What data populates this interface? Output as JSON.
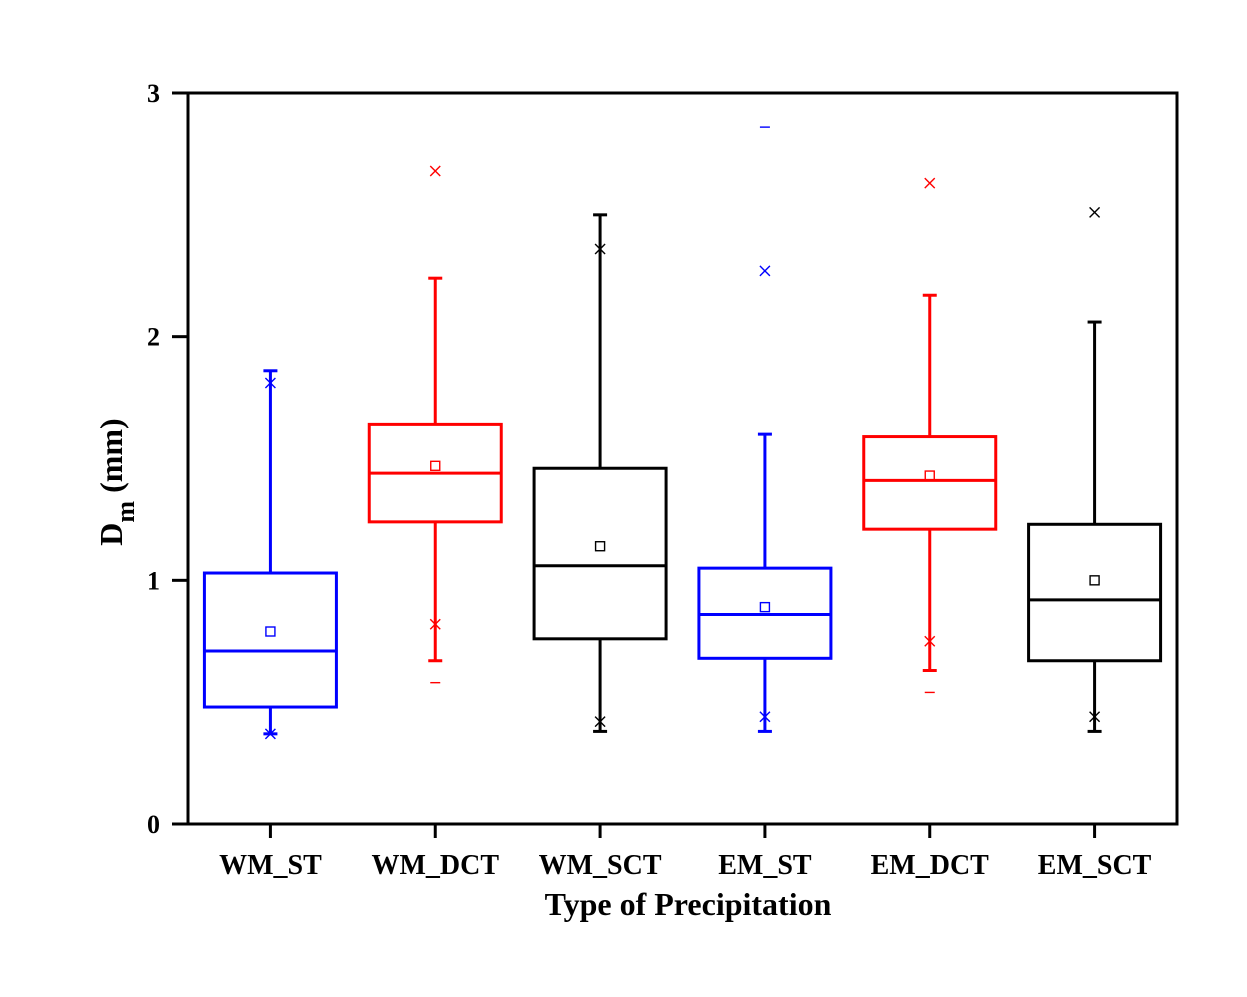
{
  "chart_data": {
    "type": "box",
    "xlabel": "Type of Precipitation",
    "ylabel": {
      "main": "D",
      "sub": "m",
      "unit": " (mm)"
    },
    "ylim": [
      0,
      3
    ],
    "yticks": [
      0,
      1,
      2,
      3
    ],
    "grid": false,
    "categories": [
      "WM_ST",
      "WM_DCT",
      "WM_SCT",
      "EM_ST",
      "EM_DCT",
      "EM_SCT"
    ],
    "series": [
      {
        "category": "WM_ST",
        "color": "#0000ff",
        "whisker_low": 0.37,
        "q1": 0.48,
        "median": 0.71,
        "q3": 1.03,
        "whisker_high": 1.86,
        "mean": 0.79,
        "x_marks": [
          0.37,
          1.81
        ],
        "dash_marks": []
      },
      {
        "category": "WM_DCT",
        "color": "#ff0000",
        "whisker_low": 0.67,
        "q1": 1.24,
        "median": 1.44,
        "q3": 1.64,
        "whisker_high": 2.24,
        "mean": 1.47,
        "x_marks": [
          0.82,
          2.68
        ],
        "dash_marks": [
          0.58
        ]
      },
      {
        "category": "WM_SCT",
        "color": "#000000",
        "whisker_low": 0.38,
        "q1": 0.76,
        "median": 1.06,
        "q3": 1.46,
        "whisker_high": 2.5,
        "mean": 1.14,
        "x_marks": [
          0.42,
          2.36
        ],
        "dash_marks": []
      },
      {
        "category": "EM_ST",
        "color": "#0000ff",
        "whisker_low": 0.38,
        "q1": 0.68,
        "median": 0.86,
        "q3": 1.05,
        "whisker_high": 1.6,
        "mean": 0.89,
        "x_marks": [
          0.44,
          2.27
        ],
        "dash_marks": [
          2.86
        ]
      },
      {
        "category": "EM_DCT",
        "color": "#ff0000",
        "whisker_low": 0.63,
        "q1": 1.21,
        "median": 1.41,
        "q3": 1.59,
        "whisker_high": 2.17,
        "mean": 1.43,
        "x_marks": [
          0.75,
          2.63
        ],
        "dash_marks": [
          0.54
        ]
      },
      {
        "category": "EM_SCT",
        "color": "#000000",
        "whisker_low": 0.38,
        "q1": 0.67,
        "median": 0.92,
        "q3": 1.23,
        "whisker_high": 2.06,
        "mean": 1.0,
        "x_marks": [
          0.44,
          2.51
        ],
        "dash_marks": []
      }
    ]
  }
}
